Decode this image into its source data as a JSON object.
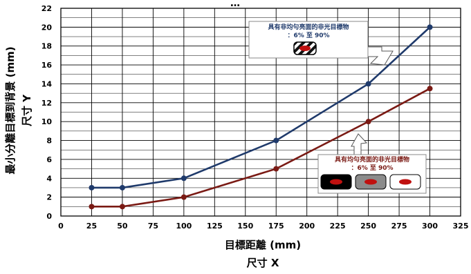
{
  "chart_data": {
    "type": "line",
    "title": "…",
    "xlabel": "目標距離 (mm)",
    "xlabel_sub": "尺寸 X",
    "ylabel": "最小分離目標到背景 (mm)",
    "ylabel_sub": "尺寸 Y",
    "xlim": [
      0,
      325
    ],
    "ylim": [
      0,
      22
    ],
    "xticks": [
      0,
      25,
      50,
      75,
      100,
      125,
      150,
      175,
      200,
      225,
      250,
      275,
      300,
      325
    ],
    "yticks": [
      0,
      2,
      4,
      6,
      8,
      10,
      12,
      14,
      16,
      18,
      20,
      22
    ],
    "grid": true,
    "series": [
      {
        "color": "#1f3a6b",
        "x": [
          25,
          50,
          100,
          175,
          250,
          300
        ],
        "y": [
          3,
          3,
          4,
          8,
          14,
          20
        ]
      },
      {
        "color": "#7a1a14",
        "x": [
          25,
          50,
          100,
          175,
          250,
          300
        ],
        "y": [
          1,
          1,
          2,
          5,
          10,
          13.5
        ]
      }
    ],
    "annotations": [
      {
        "line1": "具有非均勻亮面的非光目標物",
        "line2": "：6% 至 90%",
        "color": "#1f3a6b",
        "icon": "striped-target-icon"
      },
      {
        "line1": "具有均勻亮面的非光目標物",
        "line2": "：6% 至 90%",
        "color": "#7a1a14",
        "icon": "solid-targets-icon"
      }
    ]
  }
}
